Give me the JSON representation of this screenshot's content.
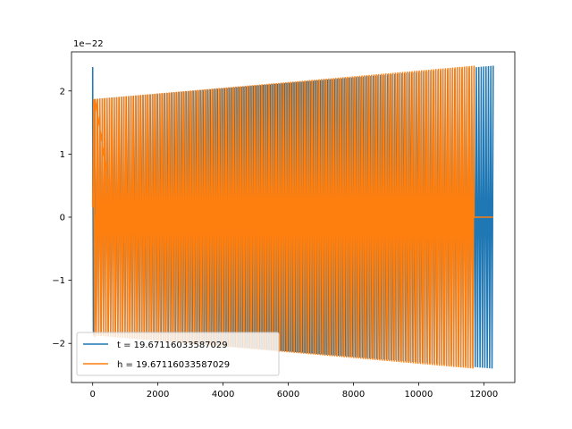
{
  "chart_data": {
    "type": "line",
    "title": "",
    "xlabel": "",
    "ylabel": "",
    "offset_label": "1e−22",
    "xlim": [
      -650,
      12950
    ],
    "ylim": [
      -2.62,
      2.62
    ],
    "xticks": [
      0,
      2000,
      4000,
      6000,
      8000,
      10000,
      12000
    ],
    "xtick_labels": [
      "0",
      "2000",
      "4000",
      "6000",
      "8000",
      "10000",
      "12000"
    ],
    "yticks": [
      -2,
      -1,
      0,
      1,
      2
    ],
    "ytick_labels": [
      "−2",
      "−1",
      "0",
      "1",
      "2"
    ],
    "grid": false,
    "legend_position": "lower-left",
    "series": [
      {
        "name": "t = 19.67116033587029",
        "color": "#1f77b4",
        "data_end": 12288,
        "initial_spike": 2.38,
        "amplitude_start": 1.87,
        "amplitude_end": 2.4,
        "cycles": 167
      },
      {
        "name": "h = 19.67116033587029",
        "color": "#ff7f0e",
        "data_start": 0,
        "flat_segment": [
          80,
          650
        ],
        "oscillation_end": 11700,
        "flat_tail_end": 12288,
        "amplitude_start": 1.87,
        "amplitude_end": 2.4,
        "cycles": 160
      }
    ]
  }
}
